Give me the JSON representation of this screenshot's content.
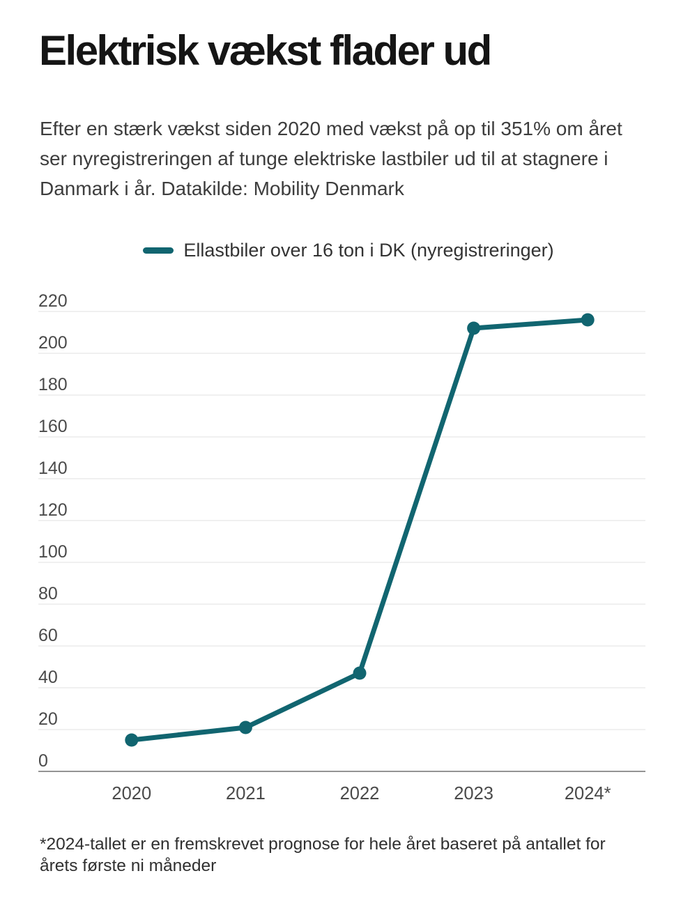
{
  "header": {
    "title": "Elektrisk vækst flader ud",
    "description_lines": [
      "Efter en stærk vækst siden 2020 med vækst på op til 351% om året",
      "ser nyregistreringen af tunge elektriske lastbiler ud til at stagnere i",
      "Danmark i år. Datakilde: Mobility Denmark"
    ]
  },
  "legend": {
    "label": "Ellastbiler over 16 ton i DK (nyregistreringer)"
  },
  "chart_data": {
    "type": "line",
    "title": "Ellastbiler over 16 ton i DK (nyregistreringer)",
    "categories": [
      "2020",
      "2021",
      "2022",
      "2023",
      "2024*"
    ],
    "series": [
      {
        "name": "Ellastbiler over 16 ton i DK (nyregistreringer)",
        "values": [
          15,
          21,
          47,
          212,
          216
        ]
      }
    ],
    "ylim": [
      0,
      220
    ],
    "ytick_step": 20,
    "grid": "horizontal",
    "legend_position": "top-center",
    "line_color": "#116570",
    "gridline_color": "#e7e7e7",
    "axis_line_color": "#949494",
    "tick_label_color": "#4a4a4a",
    "marker": "circle"
  },
  "footnote": {
    "lines": [
      "*2024-tallet er en fremskrevet prognose for hele året baseret på antallet for",
      "årets første ni måneder"
    ]
  }
}
